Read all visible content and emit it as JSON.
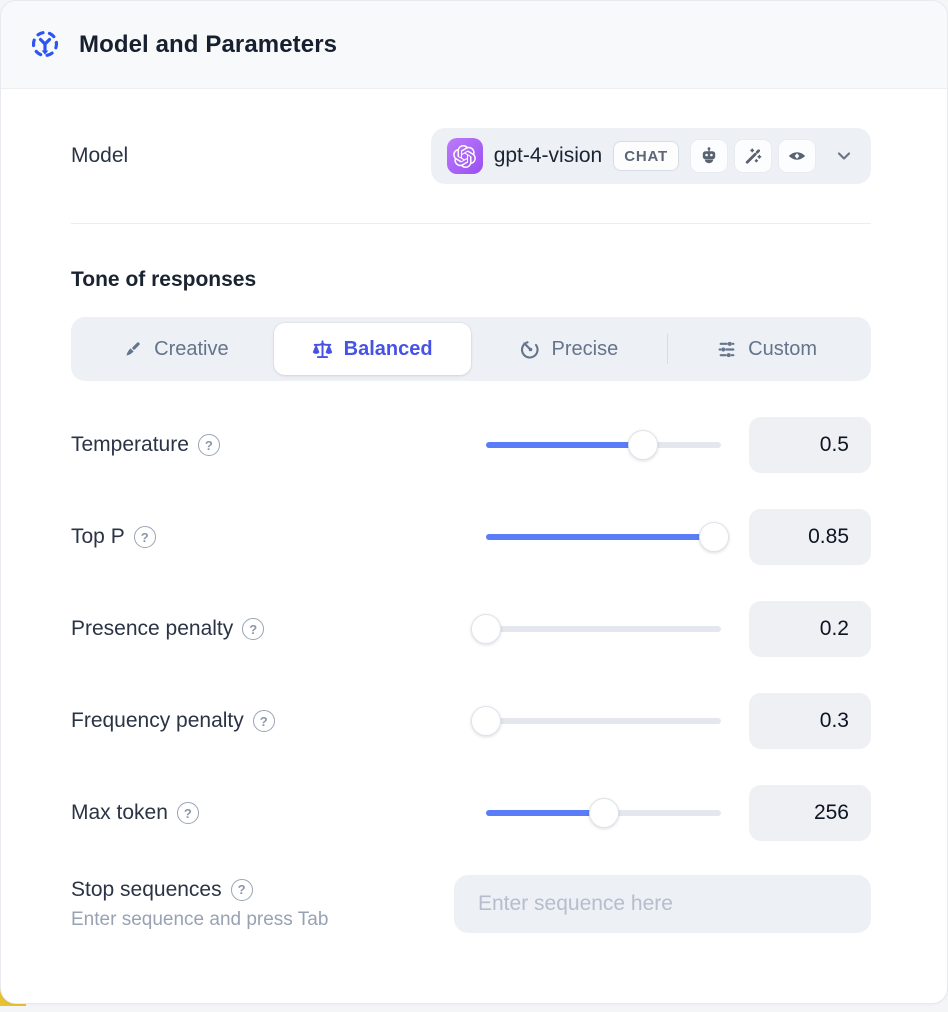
{
  "header": {
    "title": "Model and Parameters",
    "icon": "model-hub-icon"
  },
  "model_row": {
    "label": "Model",
    "provider_icon": "openai-logo",
    "selected_model": "gpt-4-vision",
    "type_badge": "CHAT",
    "capability_icons": [
      "assistant-robot-icon",
      "magic-wand-icon",
      "vision-eye-icon"
    ],
    "chevron_icon": "chevron-down-icon"
  },
  "tone": {
    "heading": "Tone of responses",
    "options": [
      {
        "label": "Creative",
        "icon": "paintbrush-icon",
        "selected": false
      },
      {
        "label": "Balanced",
        "icon": "balance-scale-icon",
        "selected": true
      },
      {
        "label": "Precise",
        "icon": "target-arrow-icon",
        "selected": false
      },
      {
        "label": "Custom",
        "icon": "sliders-icon",
        "selected": false
      }
    ]
  },
  "parameters": [
    {
      "label": "Temperature",
      "value": "0.5",
      "slider_percent": 67
    },
    {
      "label": "Top P",
      "value": "0.85",
      "slider_percent": 97
    },
    {
      "label": "Presence penalty",
      "value": "0.2",
      "slider_percent": 0
    },
    {
      "label": "Frequency penalty",
      "value": "0.3",
      "slider_percent": 0
    },
    {
      "label": "Max token",
      "value": "256",
      "slider_percent": 50
    }
  ],
  "stop_sequences": {
    "label": "Stop sequences",
    "hint": "Enter sequence and press Tab",
    "placeholder": "Enter sequence here"
  },
  "icons": {
    "help": "?"
  },
  "colors": {
    "accent_blue": "#5b7cf7",
    "selected_tone_text": "#4753e6",
    "header_icon_blue": "#2f55ef",
    "provider_badge_purple": "#a855f7",
    "corner_accent_yellow": "#e7c12f",
    "control_background": "#edf0f5",
    "card_background": "#ffffff",
    "header_background": "#f8f9fb"
  }
}
